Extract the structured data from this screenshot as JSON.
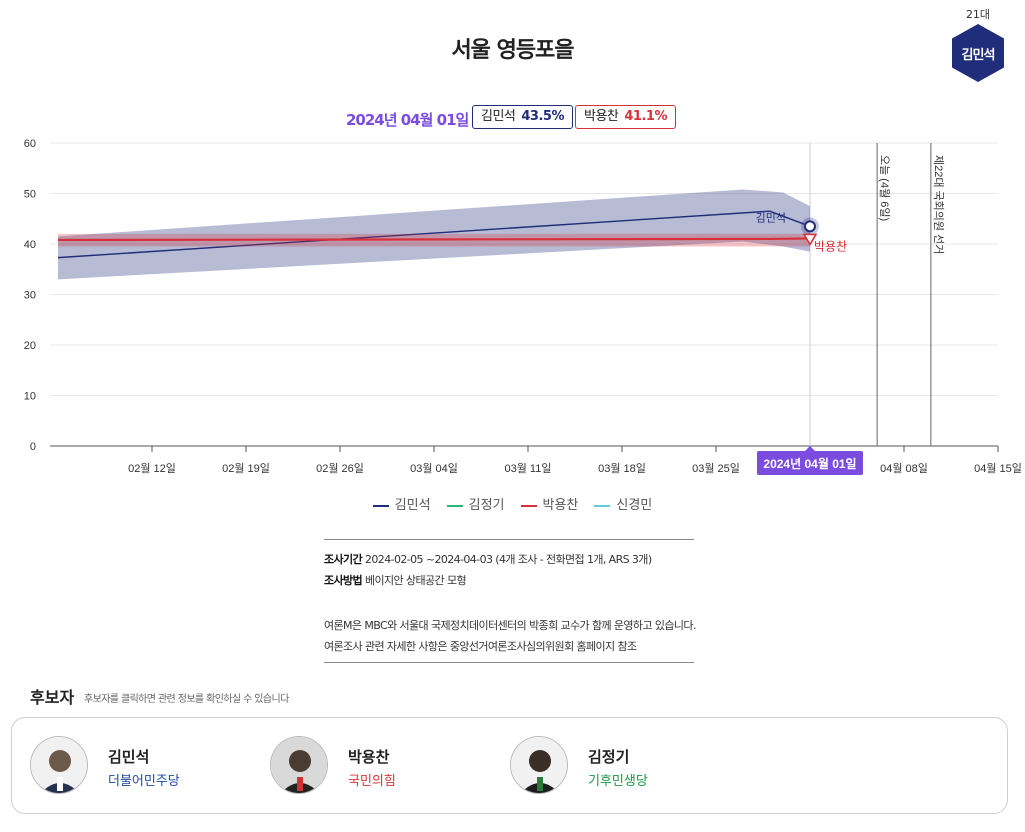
{
  "page": {
    "title": "서울 영등포을",
    "badge_top": "21대",
    "badge_name": "김민석"
  },
  "top_legend": {
    "date": "2024년 04월 01일",
    "kim_name": "김민석",
    "kim_pct": "43.5%",
    "park_name": "박용찬",
    "park_pct": "41.1%"
  },
  "chart_data": {
    "type": "line",
    "ylim": [
      0,
      60
    ],
    "yticks": [
      0,
      10,
      20,
      30,
      40,
      50,
      60
    ],
    "xlim": [
      "2024-02-05",
      "2024-04-15"
    ],
    "xticks": [
      "02월 12일",
      "02월 19일",
      "02월 26일",
      "03월 04일",
      "03월 11일",
      "03월 18일",
      "03월 25일",
      "04월 08일",
      "04월 15일"
    ],
    "series": [
      {
        "name": "김민석",
        "color": "#1f2d7a",
        "line": [
          [
            "2024-02-05",
            37.3
          ],
          [
            "2024-03-29",
            46.5
          ],
          [
            "2024-04-01",
            43.5
          ]
        ],
        "band": [
          [
            "2024-02-05",
            33,
            41.5
          ],
          [
            "2024-03-27",
            40.5,
            50.8
          ],
          [
            "2024-03-30",
            39.5,
            50.2
          ],
          [
            "2024-04-01",
            38.5,
            47.5
          ]
        ]
      },
      {
        "name": "박용찬",
        "color": "#d8303a",
        "line": [
          [
            "2024-02-05",
            40.8
          ],
          [
            "2024-03-29",
            41.0
          ],
          [
            "2024-04-01",
            41.1
          ]
        ],
        "band": [
          [
            "2024-02-05",
            39.5,
            42
          ],
          [
            "2024-04-01",
            39.5,
            42
          ]
        ]
      }
    ],
    "hover_date": "2024년 04월 01일",
    "vlines": [
      {
        "date": "2024-04-01",
        "label": ""
      },
      {
        "date": "2024-04-06",
        "label": "오늘 (4월 6일)"
      },
      {
        "date": "2024-04-10",
        "label": "제22대 국회의원 선거"
      }
    ],
    "point_labels": {
      "kim": "김민석",
      "park": "박용찬"
    }
  },
  "series_legend": [
    {
      "name": "김민석",
      "color": "#1f2d7a"
    },
    {
      "name": "김정기",
      "color": "#2bb673"
    },
    {
      "name": "박용찬",
      "color": "#d8303a"
    },
    {
      "name": "신경민",
      "color": "#5fd0d6"
    }
  ],
  "info": {
    "period_label": "조사기간",
    "period_value": "2024-02-05 ~2024-04-03 (4개 조사 - 전화면접 1개, ARS 3개)",
    "method_label": "조사방법",
    "method_value": "베이지안 상태공간 모형",
    "note1": "여론M은 MBC와 서울대 국제정치데이터센터의 박종희 교수가 함께 운영하고 있습니다.",
    "note2": "여론조사 관련 자세한 사항은 중앙선거여론조사심의위원회 홈페이지 참조"
  },
  "candidates_header": {
    "title": "후보자",
    "subtitle": "후보자를 클릭하면 관련 정보를 확인하실 수 있습니다"
  },
  "candidates": [
    {
      "name": "김민석",
      "party": "더불어민주당",
      "party_color": "#1f4aa8"
    },
    {
      "name": "박용찬",
      "party": "국민의힘",
      "party_color": "#e0323c"
    },
    {
      "name": "김정기",
      "party": "기후민생당",
      "party_color": "#1a9a4a"
    }
  ]
}
